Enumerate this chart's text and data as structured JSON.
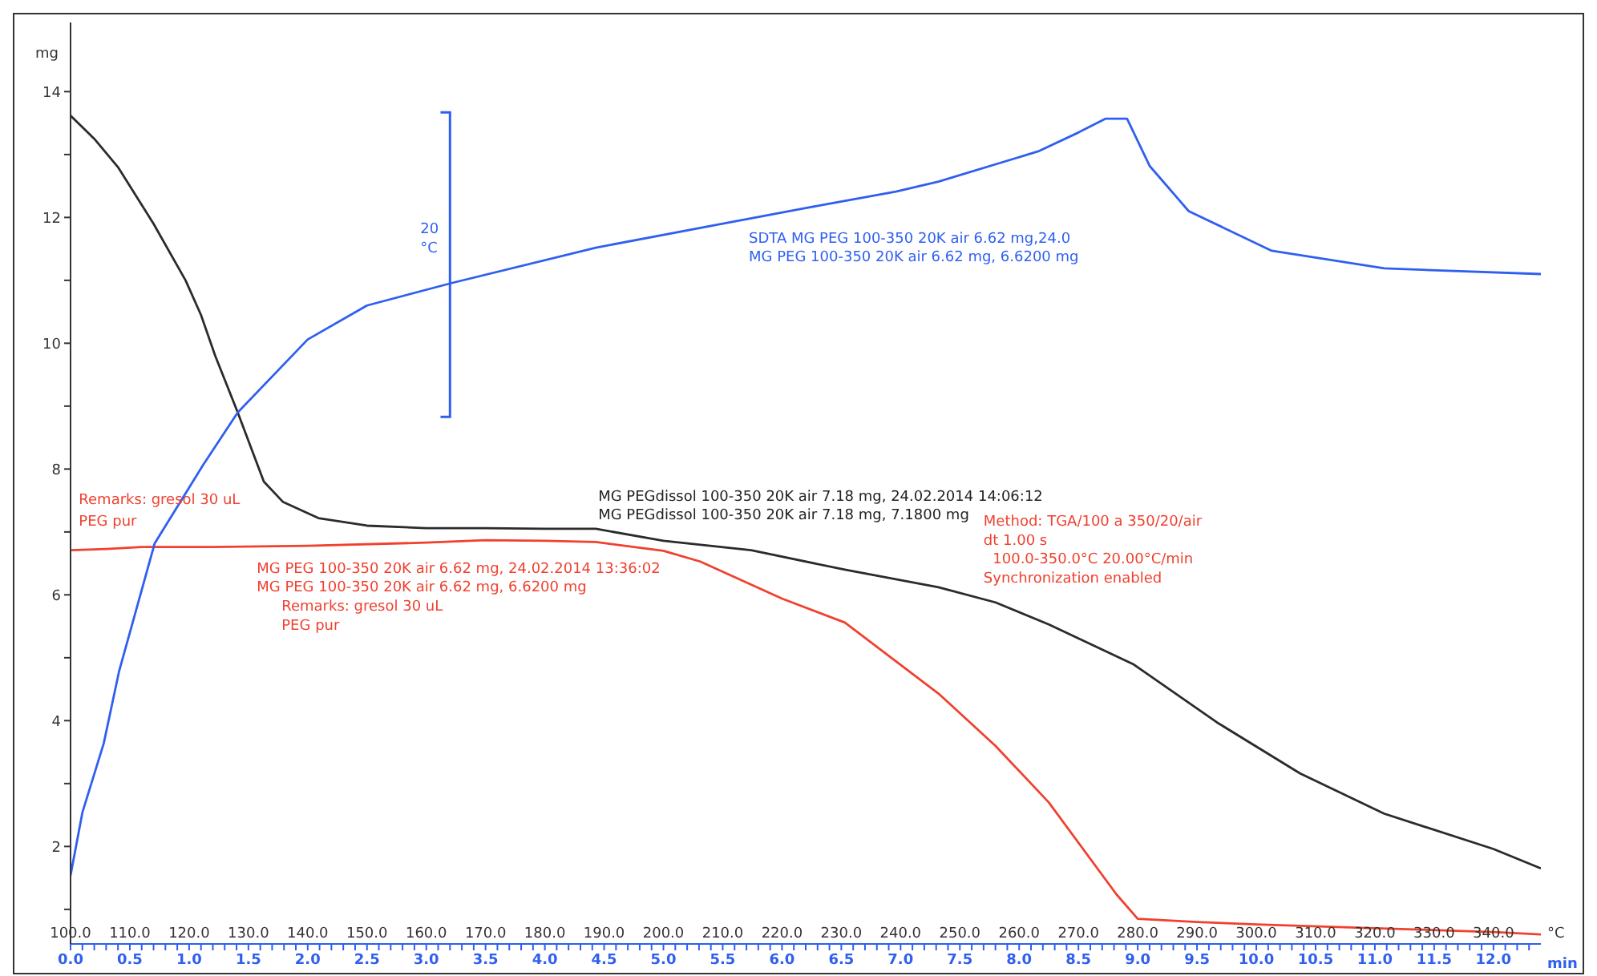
{
  "chart_data": {
    "type": "line",
    "ylabel": "mg",
    "xlabel": "min",
    "x2label": "°C",
    "xlim": [
      0,
      12.4
    ],
    "ylim": [
      0.45,
      15.1
    ],
    "x2lim": [
      100,
      348
    ],
    "yticks": [
      {
        "value": 1,
        "label": null
      },
      2,
      {
        "value": 3,
        "label": null
      },
      4,
      {
        "value": 5,
        "label": null
      },
      6,
      {
        "value": 7,
        "label": null
      },
      8,
      {
        "value": 9,
        "label": null
      },
      10,
      {
        "value": 11,
        "label": null
      },
      12,
      {
        "value": 13,
        "label": null
      },
      14
    ],
    "xticks": [
      {
        "value": 0,
        "label": "0.0"
      },
      {
        "value": 0.1,
        "label": null
      },
      {
        "value": 0.2,
        "label": null
      },
      {
        "value": 0.3,
        "label": null
      },
      {
        "value": 0.4,
        "label": null
      },
      0.5,
      {
        "value": 0.6,
        "label": null
      },
      {
        "value": 0.7,
        "label": null
      },
      {
        "value": 0.8,
        "label": null
      },
      {
        "value": 0.9,
        "label": null
      },
      {
        "value": 1,
        "label": "1.0"
      },
      {
        "value": 1.1,
        "label": null
      },
      {
        "value": 1.2,
        "label": null
      },
      {
        "value": 1.3,
        "label": null
      },
      {
        "value": 1.4,
        "label": null
      },
      1.5,
      {
        "value": 1.6,
        "label": null
      },
      {
        "value": 1.7,
        "label": null
      },
      {
        "value": 1.8,
        "label": null
      },
      {
        "value": 1.9,
        "label": null
      },
      {
        "value": 2,
        "label": "2.0"
      },
      {
        "value": 2.1,
        "label": null
      },
      {
        "value": 2.2,
        "label": null
      },
      {
        "value": 2.3,
        "label": null
      },
      {
        "value": 2.4,
        "label": null
      },
      2.5,
      {
        "value": 2.6,
        "label": null
      },
      {
        "value": 2.7,
        "label": null
      },
      {
        "value": 2.8,
        "label": null
      },
      {
        "value": 2.9,
        "label": null
      },
      {
        "value": 3,
        "label": "3.0"
      },
      {
        "value": 3.1,
        "label": null
      },
      {
        "value": 3.2,
        "label": null
      },
      {
        "value": 3.3,
        "label": null
      },
      {
        "value": 3.4,
        "label": null
      },
      3.5,
      {
        "value": 3.6,
        "label": null
      },
      {
        "value": 3.7,
        "label": null
      },
      {
        "value": 3.8,
        "label": null
      },
      {
        "value": 3.9,
        "label": null
      },
      {
        "value": 4,
        "label": "4.0"
      },
      {
        "value": 4.1,
        "label": null
      },
      {
        "value": 4.2,
        "label": null
      },
      {
        "value": 4.3,
        "label": null
      },
      {
        "value": 4.4,
        "label": null
      },
      4.5,
      {
        "value": 4.6,
        "label": null
      },
      {
        "value": 4.7,
        "label": null
      },
      {
        "value": 4.8,
        "label": null
      },
      {
        "value": 4.9,
        "label": null
      },
      {
        "value": 5,
        "label": "5.0"
      },
      {
        "value": 5.1,
        "label": null
      },
      {
        "value": 5.2,
        "label": null
      },
      {
        "value": 5.3,
        "label": null
      },
      {
        "value": 5.4,
        "label": null
      },
      5.5,
      {
        "value": 5.6,
        "label": null
      },
      {
        "value": 5.7,
        "label": null
      },
      {
        "value": 5.8,
        "label": null
      },
      {
        "value": 5.9,
        "label": null
      },
      {
        "value": 6,
        "label": "6.0"
      },
      {
        "value": 6.1,
        "label": null
      },
      {
        "value": 6.2,
        "label": null
      },
      {
        "value": 6.3,
        "label": null
      },
      {
        "value": 6.4,
        "label": null
      },
      6.5,
      {
        "value": 6.6,
        "label": null
      },
      {
        "value": 6.7,
        "label": null
      },
      {
        "value": 6.8,
        "label": null
      },
      {
        "value": 6.9,
        "label": null
      },
      {
        "value": 7,
        "label": "7.0"
      },
      {
        "value": 7.1,
        "label": null
      },
      {
        "value": 7.2,
        "label": null
      },
      {
        "value": 7.3,
        "label": null
      },
      {
        "value": 7.4,
        "label": null
      },
      7.5,
      {
        "value": 7.6,
        "label": null
      },
      {
        "value": 7.7,
        "label": null
      },
      {
        "value": 7.8,
        "label": null
      },
      {
        "value": 7.9,
        "label": null
      },
      {
        "value": 8,
        "label": "8.0"
      },
      {
        "value": 8.1,
        "label": null
      },
      {
        "value": 8.2,
        "label": null
      },
      {
        "value": 8.3,
        "label": null
      },
      {
        "value": 8.4,
        "label": null
      },
      8.5,
      {
        "value": 8.6,
        "label": null
      },
      {
        "value": 8.7,
        "label": null
      },
      {
        "value": 8.8,
        "label": null
      },
      {
        "value": 8.9,
        "label": null
      },
      {
        "value": 9,
        "label": "9.0"
      },
      {
        "value": 9.1,
        "label": null
      },
      {
        "value": 9.2,
        "label": null
      },
      {
        "value": 9.3,
        "label": null
      },
      {
        "value": 9.4,
        "label": null
      },
      9.5,
      {
        "value": 9.6,
        "label": null
      },
      {
        "value": 9.7,
        "label": null
      },
      {
        "value": 9.8,
        "label": null
      },
      {
        "value": 9.9,
        "label": null
      },
      {
        "value": 10,
        "label": "10.0"
      },
      {
        "value": 10.1,
        "label": null
      },
      {
        "value": 10.2,
        "label": null
      },
      {
        "value": 10.3,
        "label": null
      },
      {
        "value": 10.4,
        "label": null
      },
      10.5,
      {
        "value": 10.6,
        "label": null
      },
      {
        "value": 10.7,
        "label": null
      },
      {
        "value": 10.8,
        "label": null
      },
      {
        "value": 10.9,
        "label": null
      },
      {
        "value": 11,
        "label": "11.0"
      },
      {
        "value": 11.1,
        "label": null
      },
      {
        "value": 11.2,
        "label": null
      },
      {
        "value": 11.3,
        "label": null
      },
      {
        "value": 11.4,
        "label": null
      },
      11.5,
      {
        "value": 11.6,
        "label": null
      },
      {
        "value": 11.7,
        "label": null
      },
      {
        "value": 11.8,
        "label": null
      },
      {
        "value": 11.9,
        "label": null
      },
      {
        "value": 12,
        "label": "12.0"
      },
      {
        "value": 12.1,
        "label": null
      },
      {
        "value": 12.2,
        "label": null
      },
      {
        "value": 12.3,
        "label": null
      }
    ],
    "x2ticks": [
      {
        "value": 100,
        "label": "100.0"
      },
      {
        "value": 110,
        "label": "110.0"
      },
      {
        "value": 120,
        "label": "120.0"
      },
      {
        "value": 130,
        "label": "130.0"
      },
      {
        "value": 140,
        "label": "140.0"
      },
      {
        "value": 150,
        "label": "150.0"
      },
      {
        "value": 160,
        "label": "160.0"
      },
      {
        "value": 170,
        "label": "170.0"
      },
      {
        "value": 180,
        "label": "180.0"
      },
      {
        "value": 190,
        "label": "190.0"
      },
      {
        "value": 200,
        "label": "200.0"
      },
      {
        "value": 210,
        "label": "210.0"
      },
      {
        "value": 220,
        "label": "220.0"
      },
      {
        "value": 230,
        "label": "230.0"
      },
      {
        "value": 240,
        "label": "240.0"
      },
      {
        "value": 250,
        "label": "250.0"
      },
      {
        "value": 260,
        "label": "260.0"
      },
      {
        "value": 270,
        "label": "270.0"
      },
      {
        "value": 280,
        "label": "280.0"
      },
      {
        "value": 290,
        "label": "290.0"
      },
      {
        "value": 300,
        "label": "300.0"
      },
      {
        "value": 310,
        "label": "310.0"
      },
      {
        "value": 320,
        "label": "320.0"
      },
      {
        "value": 330,
        "label": "330.0"
      },
      {
        "value": 340,
        "label": "340.0"
      }
    ],
    "series": [
      {
        "color": "#2b2b2b",
        "x": [
          0,
          0.2,
          0.4,
          0.7,
          0.97,
          1.1,
          1.22,
          1.41,
          1.63,
          1.79,
          2.09,
          2.5,
          3.0,
          3.5,
          4.0,
          4.43,
          5.0,
          5.74,
          6.53,
          7.32,
          7.8,
          8.25,
          8.96,
          9.67,
          10.37,
          11.08,
          12.0,
          12.4
        ],
        "values": [
          13.62,
          13.25,
          12.8,
          11.9,
          11.0,
          10.45,
          9.8,
          8.9,
          7.8,
          7.48,
          7.22,
          7.1,
          7.06,
          7.06,
          7.05,
          7.05,
          6.86,
          6.71,
          6.4,
          6.12,
          5.88,
          5.53,
          4.9,
          3.97,
          3.16,
          2.52,
          1.96,
          1.65
        ]
      },
      {
        "color": "#f0412f",
        "x": [
          0,
          0.3,
          0.6,
          1.2,
          2.0,
          3.0,
          3.5,
          4.0,
          4.43,
          5.0,
          5.31,
          6.0,
          6.53,
          7.32,
          7.8,
          8.25,
          8.82,
          9.0,
          9.5,
          10,
          11,
          12,
          12.4
        ],
        "values": [
          6.71,
          6.73,
          6.76,
          6.76,
          6.78,
          6.83,
          6.87,
          6.86,
          6.84,
          6.7,
          6.53,
          5.94,
          5.56,
          4.43,
          3.6,
          2.7,
          1.24,
          0.85,
          0.8,
          0.76,
          0.7,
          0.64,
          0.6
        ]
      },
      {
        "color": "#2f5ff0",
        "x": [
          0,
          0.1,
          0.28,
          0.41,
          0.71,
          1.12,
          1.41,
          2.0,
          2.5,
          3.22,
          4.43,
          5.5,
          6.2,
          6.96,
          7.32,
          8.16,
          8.5,
          8.73,
          8.91,
          9.1,
          9.43,
          10.13,
          11.08,
          12.4
        ],
        "values": [
          1.54,
          2.54,
          3.64,
          4.79,
          6.82,
          8.07,
          8.9,
          10.06,
          10.6,
          10.96,
          11.52,
          11.9,
          12.15,
          12.41,
          12.57,
          13.05,
          13.35,
          13.57,
          13.57,
          12.82,
          12.1,
          11.47,
          11.19,
          11.1
        ]
      }
    ],
    "annotations": [
      "Remarks: gresol 30 uL",
      "PEG pur",
      "MG PEG 100-350 20K air 6.62 mg, 24.02.2014 13:36:02",
      "MG PEG 100-350 20K air 6.62 mg, 6.6200 mg",
      "Remarks: gresol 30 uL",
      "PEG pur",
      "MG PEGdissol 100-350 20K air 7.18 mg, 24.02.2014 14:06:12",
      "MG PEGdissol 100-350 20K air 7.18 mg, 7.1800 mg",
      "SDTA MG PEG 100-350 20K air 6.62 mg,24.0",
      "MG PEG 100-350 20K air 6.62 mg, 6.6200 mg",
      "Method: TGA/100 a 350/20/air",
      "dt 1.00 s",
      "  100.0-350.0°C 20.00°C/min",
      "Synchronization enabled",
      "20",
      "°C"
    ]
  }
}
